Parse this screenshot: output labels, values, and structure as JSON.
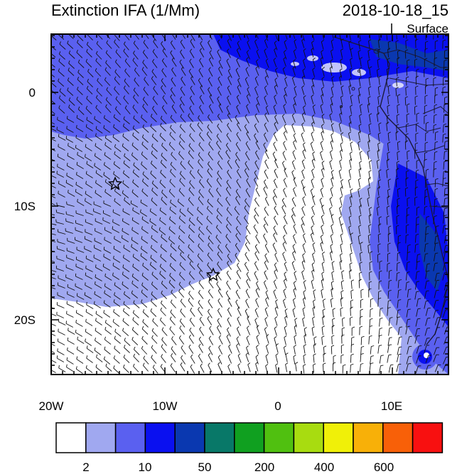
{
  "header": {
    "title": "Extinction IFA (1/Mm)",
    "datetime": "2018-10-18_15",
    "level": "Surface"
  },
  "axes": {
    "x_labels": [
      "20W",
      "10W",
      "0",
      "10E"
    ],
    "y_labels": [
      "0",
      "10S",
      "20S"
    ]
  },
  "colorbar": {
    "colors": [
      "#ffffff",
      "#a0a8f0",
      "#5a60f0",
      "#0a10f0",
      "#0a38b0",
      "#087868",
      "#10a020",
      "#50c010",
      "#a8dc10",
      "#f0f008",
      "#f8b008",
      "#f86008",
      "#f81010"
    ],
    "labels": [
      "2",
      "10",
      "50",
      "200",
      "400",
      "600"
    ]
  },
  "markers": {
    "star": "star-icon"
  },
  "palette": {
    "ocean_low": "#a0a8f0",
    "ocean_mid": "#5a60f0",
    "ocean_high": "#0a10f0",
    "clean": "#ffffff",
    "coast": "#1a1a3a"
  }
}
